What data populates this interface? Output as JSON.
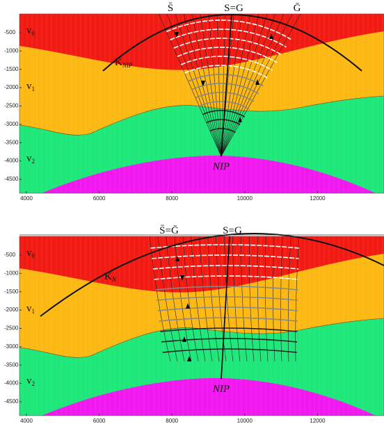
{
  "panels": [
    {
      "top_labels": [
        "S̄",
        "S=G",
        "Ḡ"
      ],
      "curve_label": {
        "base": "K",
        "sub": "NIP"
      },
      "point_label": "NIP",
      "layer_labels": [
        {
          "base": "v",
          "sub": "0"
        },
        {
          "base": "v",
          "sub": "1"
        },
        {
          "base": "v",
          "sub": "2"
        }
      ],
      "yticks": [
        -500,
        -1000,
        -1500,
        -2000,
        -2500,
        -3000,
        -3500,
        -4000,
        -4500
      ],
      "xticks": [
        4000,
        6000,
        8000,
        10000,
        12000
      ]
    },
    {
      "top_labels": [
        "S̄=Ḡ",
        "S=G"
      ],
      "curve_label": {
        "base": "K",
        "sub": "N"
      },
      "point_label": "NIP",
      "layer_labels": [
        {
          "base": "v",
          "sub": "0"
        },
        {
          "base": "v",
          "sub": "1"
        },
        {
          "base": "v",
          "sub": "2"
        }
      ],
      "yticks": [
        -500,
        -1000,
        -1500,
        -2000,
        -2500,
        -3000,
        -3500,
        -4000,
        -4500
      ],
      "xticks": [
        4000,
        6000,
        8000,
        10000,
        12000
      ]
    }
  ]
}
